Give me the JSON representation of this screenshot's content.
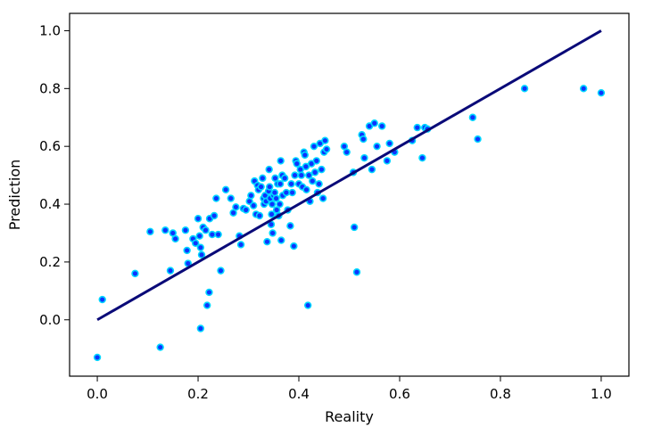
{
  "chart_data": {
    "type": "scatter",
    "title": "",
    "xlabel": "Reality",
    "ylabel": "Prediction",
    "xlim": [
      -0.055,
      1.055
    ],
    "ylim": [
      -0.195,
      1.06
    ],
    "xticks": [
      0.0,
      0.2,
      0.4,
      0.6,
      0.8,
      1.0
    ],
    "yticks": [
      0.0,
      0.2,
      0.4,
      0.6,
      0.8,
      1.0
    ],
    "xtick_labels": [
      "0.0",
      "0.2",
      "0.4",
      "0.6",
      "0.8",
      "1.0"
    ],
    "ytick_labels": [
      "0.0",
      "0.2",
      "0.4",
      "0.6",
      "0.8",
      "1.0"
    ],
    "grid": false,
    "colors": {
      "points": "#0d33ff",
      "point_edge": "#00d7ff",
      "line": "#0a0a78"
    },
    "reference_line": {
      "x": [
        0.0,
        1.0
      ],
      "y": [
        0.0,
        1.0
      ]
    },
    "points": [
      [
        0.0,
        -0.13
      ],
      [
        0.01,
        0.07
      ],
      [
        0.075,
        0.16
      ],
      [
        0.105,
        0.305
      ],
      [
        0.125,
        -0.095
      ],
      [
        0.135,
        0.31
      ],
      [
        0.145,
        0.17
      ],
      [
        0.15,
        0.3
      ],
      [
        0.155,
        0.28
      ],
      [
        0.175,
        0.31
      ],
      [
        0.178,
        0.24
      ],
      [
        0.18,
        0.195
      ],
      [
        0.19,
        0.28
      ],
      [
        0.195,
        0.265
      ],
      [
        0.2,
        0.35
      ],
      [
        0.203,
        0.29
      ],
      [
        0.205,
        0.25
      ],
      [
        0.207,
        0.225
      ],
      [
        0.205,
        -0.03
      ],
      [
        0.21,
        0.32
      ],
      [
        0.215,
        0.31
      ],
      [
        0.218,
        0.05
      ],
      [
        0.222,
        0.095
      ],
      [
        0.223,
        0.35
      ],
      [
        0.228,
        0.295
      ],
      [
        0.232,
        0.36
      ],
      [
        0.236,
        0.42
      ],
      [
        0.24,
        0.295
      ],
      [
        0.245,
        0.17
      ],
      [
        0.255,
        0.45
      ],
      [
        0.265,
        0.42
      ],
      [
        0.27,
        0.37
      ],
      [
        0.275,
        0.39
      ],
      [
        0.282,
        0.29
      ],
      [
        0.285,
        0.26
      ],
      [
        0.29,
        0.385
      ],
      [
        0.295,
        0.38
      ],
      [
        0.302,
        0.41
      ],
      [
        0.305,
        0.43
      ],
      [
        0.31,
        0.395
      ],
      [
        0.312,
        0.48
      ],
      [
        0.315,
        0.365
      ],
      [
        0.318,
        0.465
      ],
      [
        0.32,
        0.45
      ],
      [
        0.322,
        0.36
      ],
      [
        0.325,
        0.46
      ],
      [
        0.328,
        0.49
      ],
      [
        0.33,
        0.42
      ],
      [
        0.331,
        0.4
      ],
      [
        0.333,
        0.43
      ],
      [
        0.335,
        0.41
      ],
      [
        0.337,
        0.27
      ],
      [
        0.34,
        0.445
      ],
      [
        0.341,
        0.52
      ],
      [
        0.342,
        0.46
      ],
      [
        0.343,
        0.42
      ],
      [
        0.345,
        0.33
      ],
      [
        0.346,
        0.365
      ],
      [
        0.347,
        0.4
      ],
      [
        0.348,
        0.3
      ],
      [
        0.35,
        0.43
      ],
      [
        0.352,
        0.44
      ],
      [
        0.353,
        0.49
      ],
      [
        0.355,
        0.42
      ],
      [
        0.356,
        0.38
      ],
      [
        0.358,
        0.47
      ],
      [
        0.36,
        0.36
      ],
      [
        0.362,
        0.4
      ],
      [
        0.363,
        0.47
      ],
      [
        0.364,
        0.55
      ],
      [
        0.365,
        0.275
      ],
      [
        0.367,
        0.5
      ],
      [
        0.368,
        0.43
      ],
      [
        0.372,
        0.49
      ],
      [
        0.375,
        0.44
      ],
      [
        0.378,
        0.38
      ],
      [
        0.383,
        0.325
      ],
      [
        0.385,
        0.47
      ],
      [
        0.387,
        0.44
      ],
      [
        0.39,
        0.255
      ],
      [
        0.392,
        0.5
      ],
      [
        0.394,
        0.55
      ],
      [
        0.396,
        0.54
      ],
      [
        0.4,
        0.47
      ],
      [
        0.403,
        0.52
      ],
      [
        0.405,
        0.5
      ],
      [
        0.407,
        0.46
      ],
      [
        0.41,
        0.58
      ],
      [
        0.412,
        0.57
      ],
      [
        0.414,
        0.53
      ],
      [
        0.415,
        0.45
      ],
      [
        0.418,
        0.05
      ],
      [
        0.42,
        0.5
      ],
      [
        0.422,
        0.41
      ],
      [
        0.425,
        0.54
      ],
      [
        0.427,
        0.48
      ],
      [
        0.43,
        0.6
      ],
      [
        0.432,
        0.51
      ],
      [
        0.435,
        0.55
      ],
      [
        0.437,
        0.44
      ],
      [
        0.44,
        0.47
      ],
      [
        0.442,
        0.61
      ],
      [
        0.445,
        0.52
      ],
      [
        0.448,
        0.42
      ],
      [
        0.45,
        0.58
      ],
      [
        0.452,
        0.62
      ],
      [
        0.455,
        0.59
      ],
      [
        0.49,
        0.6
      ],
      [
        0.495,
        0.58
      ],
      [
        0.508,
        0.51
      ],
      [
        0.51,
        0.32
      ],
      [
        0.515,
        0.165
      ],
      [
        0.525,
        0.64
      ],
      [
        0.528,
        0.625
      ],
      [
        0.53,
        0.56
      ],
      [
        0.54,
        0.67
      ],
      [
        0.545,
        0.52
      ],
      [
        0.55,
        0.68
      ],
      [
        0.555,
        0.6
      ],
      [
        0.565,
        0.67
      ],
      [
        0.575,
        0.55
      ],
      [
        0.58,
        0.61
      ],
      [
        0.59,
        0.58
      ],
      [
        0.625,
        0.62
      ],
      [
        0.635,
        0.665
      ],
      [
        0.645,
        0.56
      ],
      [
        0.65,
        0.665
      ],
      [
        0.655,
        0.66
      ],
      [
        0.745,
        0.7
      ],
      [
        0.755,
        0.625
      ],
      [
        0.848,
        0.8
      ],
      [
        0.965,
        0.8
      ],
      [
        1.0,
        0.785
      ]
    ]
  }
}
